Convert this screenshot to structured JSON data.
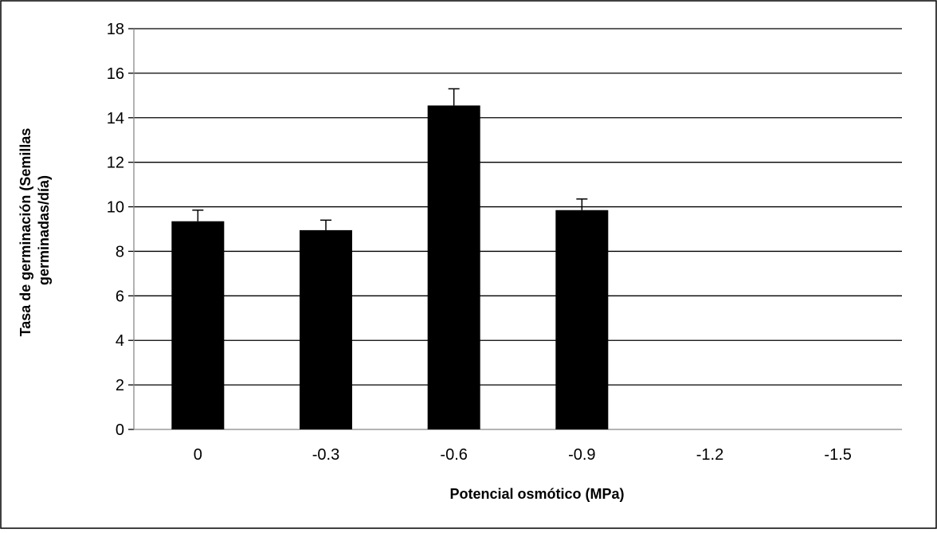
{
  "chart_data": {
    "type": "bar",
    "title": "",
    "xlabel": "Potencial osmótico (MPa)",
    "ylabel_line1": "Tasa de germinación (Semillas",
    "ylabel_line2": "germinadas/día)",
    "categories": [
      "0",
      "-0.3",
      "-0.6",
      "-0.9",
      "-1.2",
      "-1.5"
    ],
    "values": [
      9.35,
      8.95,
      14.55,
      9.85,
      0,
      0
    ],
    "errors": [
      0.5,
      0.45,
      0.75,
      0.5,
      0,
      0
    ],
    "ylim": [
      0,
      18
    ],
    "yticks": [
      0,
      2,
      4,
      6,
      8,
      10,
      12,
      14,
      16,
      18
    ],
    "grid": true,
    "legend": "none",
    "bar_color": "#000000",
    "gridline_color": "#000000"
  }
}
